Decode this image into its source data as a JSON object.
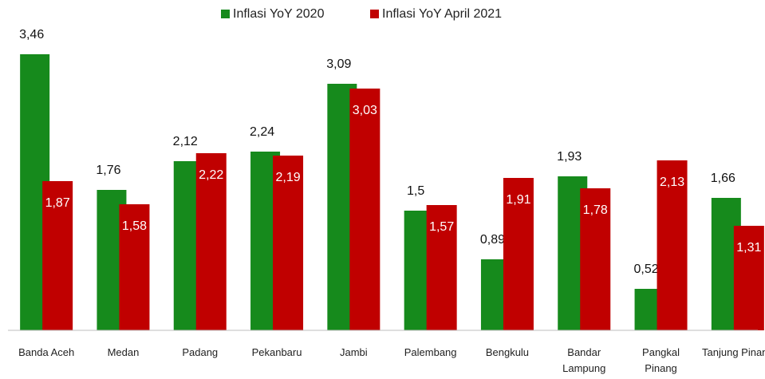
{
  "chart_data": {
    "type": "bar",
    "categories": [
      "Banda Aceh",
      "Medan",
      "Padang",
      "Pekanbaru",
      "Jambi",
      "Palembang",
      "Bengkulu",
      "Bandar Lampung",
      "Pangkal Pinang",
      "Tanjung Pinang"
    ],
    "series": [
      {
        "name": "Inflasi YoY 2020",
        "color": "#168a1c",
        "values": [
          3.46,
          1.76,
          2.12,
          2.24,
          3.09,
          1.5,
          0.89,
          1.93,
          0.52,
          1.66
        ],
        "value_labels": [
          "3,46",
          "1,76",
          "2,12",
          "2,24",
          "3,09",
          "1,5",
          "0,89",
          "1,93",
          "0,52",
          "1,66"
        ]
      },
      {
        "name": "Inflasi YoY April 2021",
        "color": "#c00000",
        "values": [
          1.87,
          1.58,
          2.22,
          2.19,
          3.03,
          1.57,
          1.91,
          1.78,
          2.13,
          1.31
        ],
        "value_labels": [
          "1,87",
          "1,58",
          "2,22",
          "2,19",
          "3,03",
          "1,57",
          "1,91",
          "1,78",
          "2,13",
          "1,31"
        ]
      }
    ],
    "ylim": [
      0,
      4
    ],
    "legend": "top"
  }
}
